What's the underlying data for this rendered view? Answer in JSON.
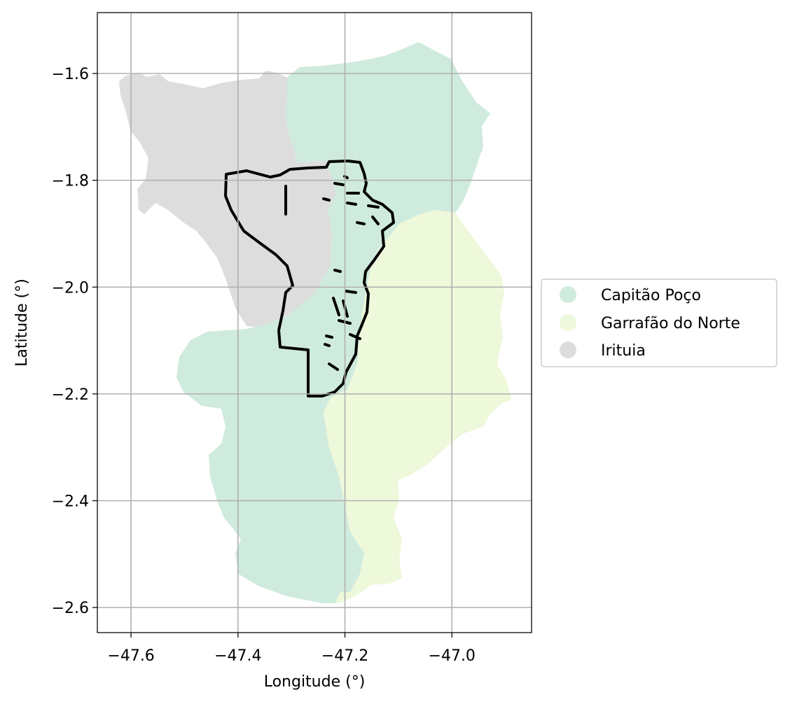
{
  "map": {
    "xlabel": "Longitude (°)",
    "ylabel": "Latitude (°)",
    "x_ticks": [
      {
        "value": -47.6,
        "label": "−47.6"
      },
      {
        "value": -47.4,
        "label": "−47.4"
      },
      {
        "value": -47.2,
        "label": "−47.2"
      },
      {
        "value": -47.0,
        "label": "−47.0"
      }
    ],
    "y_ticks": [
      {
        "value": -1.6,
        "label": "−1.6"
      },
      {
        "value": -1.8,
        "label": "−1.8"
      },
      {
        "value": -2.0,
        "label": "−2.0"
      },
      {
        "value": -2.2,
        "label": "−2.2"
      },
      {
        "value": -2.4,
        "label": "−2.4"
      },
      {
        "value": -2.6,
        "label": "−2.6"
      }
    ],
    "xlim": [
      -47.663,
      -46.851
    ],
    "ylim": [
      -2.647,
      -1.486
    ],
    "grid": true,
    "legend_position": "right, vertically centered",
    "legend": [
      {
        "label": "Capitão Poço",
        "color": "#cfebdd"
      },
      {
        "label": "Garrafão do Norte",
        "color": "#eef8da"
      },
      {
        "label": "Irituia",
        "color": "#dddddd"
      }
    ],
    "outline_color": "#000000"
  }
}
